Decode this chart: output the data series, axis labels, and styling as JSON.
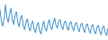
{
  "values": [
    68,
    52,
    45,
    55,
    75,
    58,
    50,
    62,
    70,
    55,
    47,
    60,
    65,
    50,
    44,
    56,
    60,
    46,
    40,
    50,
    55,
    43,
    38,
    48,
    52,
    40,
    36,
    46,
    50,
    38,
    34,
    44,
    52,
    42,
    38,
    48,
    54,
    44,
    40,
    50,
    56,
    46,
    42,
    52,
    54,
    44,
    40,
    50,
    52,
    43,
    39,
    49,
    51,
    42,
    38,
    48,
    50,
    41,
    37,
    47,
    49,
    40,
    36,
    46,
    48,
    39,
    35,
    45,
    47,
    38,
    34,
    44,
    46,
    37,
    33,
    43,
    45,
    36,
    32,
    42
  ],
  "line_color": "#3d8fc8",
  "background_color": "#ffffff",
  "linewidth": 0.7
}
